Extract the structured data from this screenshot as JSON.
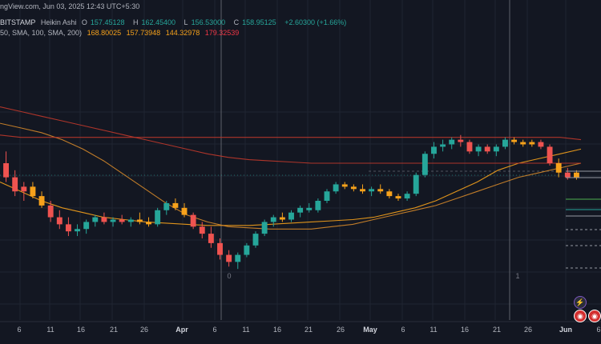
{
  "window": {
    "title_fragment": "ngView.com, Jun 03, 2025 12:43 UTC+5:30"
  },
  "header": {
    "symbol_exchange": "BITSTAMP",
    "chart_style": "Heikin Ashi",
    "open_label": "O",
    "open_value": "157.45128",
    "high_label": "H",
    "high_value": "162.45400",
    "low_label": "L",
    "low_value": "156.53000",
    "close_label": "C",
    "close_value": "158.95125",
    "change": "+2.60300 (+1.66%)"
  },
  "indicators": {
    "label": "50, SMA, 100, SMA, 200)",
    "values": [
      "168.80025",
      "157.73948",
      "144.32978",
      "179.32539"
    ]
  },
  "session_markers": [
    "0",
    "1"
  ],
  "x_axis": {
    "ticks": [
      {
        "label": "6",
        "is_month": false
      },
      {
        "label": "11",
        "is_month": false
      },
      {
        "label": "16",
        "is_month": false
      },
      {
        "label": "21",
        "is_month": false
      },
      {
        "label": "26",
        "is_month": false
      },
      {
        "label": "Apr",
        "is_month": true
      },
      {
        "label": "6",
        "is_month": false
      },
      {
        "label": "11",
        "is_month": false
      },
      {
        "label": "16",
        "is_month": false
      },
      {
        "label": "21",
        "is_month": false
      },
      {
        "label": "26",
        "is_month": false
      },
      {
        "label": "May",
        "is_month": true
      },
      {
        "label": "6",
        "is_month": false
      },
      {
        "label": "11",
        "is_month": false
      },
      {
        "label": "16",
        "is_month": false
      },
      {
        "label": "21",
        "is_month": false
      },
      {
        "label": "26",
        "is_month": false
      },
      {
        "label": "Jun",
        "is_month": true
      },
      {
        "label": "6",
        "is_month": false
      }
    ]
  },
  "colors": {
    "background": "#131722",
    "grid": "#1f2431",
    "up": "#26a69a",
    "down": "#ef5350",
    "neutral_orange": "#f7a21b",
    "sma_short": "#f7a21b",
    "sma_mid": "#d4872a",
    "sma_long": "#c0392b",
    "vertical_marker": "#5d606b"
  },
  "chart_data": {
    "type": "candlestick",
    "series_label": "Heikin Ashi",
    "candles": [
      {
        "o": 178,
        "h": 183,
        "l": 170,
        "c": 172,
        "dir": "down"
      },
      {
        "o": 172,
        "h": 175,
        "l": 164,
        "c": 166,
        "dir": "down"
      },
      {
        "o": 166,
        "h": 170,
        "l": 162,
        "c": 168,
        "dir": "down"
      },
      {
        "o": 168,
        "h": 170,
        "l": 163,
        "c": 164,
        "dir": "orange"
      },
      {
        "o": 164,
        "h": 166,
        "l": 159,
        "c": 160,
        "dir": "orange"
      },
      {
        "o": 160,
        "h": 162,
        "l": 153,
        "c": 155,
        "dir": "down"
      },
      {
        "o": 155,
        "h": 158,
        "l": 150,
        "c": 152,
        "dir": "down"
      },
      {
        "o": 152,
        "h": 155,
        "l": 147,
        "c": 149,
        "dir": "down"
      },
      {
        "o": 149,
        "h": 152,
        "l": 147,
        "c": 150,
        "dir": "up"
      },
      {
        "o": 150,
        "h": 154,
        "l": 148,
        "c": 153,
        "dir": "up"
      },
      {
        "o": 153,
        "h": 156,
        "l": 151,
        "c": 155,
        "dir": "up"
      },
      {
        "o": 155,
        "h": 157,
        "l": 152,
        "c": 153,
        "dir": "down"
      },
      {
        "o": 153,
        "h": 155,
        "l": 151,
        "c": 154,
        "dir": "up"
      },
      {
        "o": 154,
        "h": 156,
        "l": 152,
        "c": 153,
        "dir": "down"
      },
      {
        "o": 153,
        "h": 155,
        "l": 151,
        "c": 154,
        "dir": "up"
      },
      {
        "o": 154,
        "h": 157,
        "l": 152,
        "c": 153,
        "dir": "orange"
      },
      {
        "o": 153,
        "h": 155,
        "l": 151,
        "c": 152,
        "dir": "orange"
      },
      {
        "o": 152,
        "h": 159,
        "l": 151,
        "c": 158,
        "dir": "up"
      },
      {
        "o": 158,
        "h": 162,
        "l": 156,
        "c": 161,
        "dir": "up"
      },
      {
        "o": 161,
        "h": 163,
        "l": 158,
        "c": 159,
        "dir": "orange"
      },
      {
        "o": 159,
        "h": 161,
        "l": 155,
        "c": 156,
        "dir": "orange"
      },
      {
        "o": 156,
        "h": 157,
        "l": 150,
        "c": 151,
        "dir": "down"
      },
      {
        "o": 151,
        "h": 153,
        "l": 146,
        "c": 148,
        "dir": "down"
      },
      {
        "o": 148,
        "h": 151,
        "l": 142,
        "c": 144,
        "dir": "down"
      },
      {
        "o": 144,
        "h": 146,
        "l": 137,
        "c": 139,
        "dir": "down"
      },
      {
        "o": 139,
        "h": 141,
        "l": 134,
        "c": 136,
        "dir": "down"
      },
      {
        "o": 136,
        "h": 140,
        "l": 133,
        "c": 139,
        "dir": "up"
      },
      {
        "o": 139,
        "h": 144,
        "l": 138,
        "c": 143,
        "dir": "up"
      },
      {
        "o": 143,
        "h": 149,
        "l": 142,
        "c": 148,
        "dir": "up"
      },
      {
        "o": 148,
        "h": 154,
        "l": 147,
        "c": 153,
        "dir": "up"
      },
      {
        "o": 153,
        "h": 156,
        "l": 151,
        "c": 155,
        "dir": "up"
      },
      {
        "o": 155,
        "h": 157,
        "l": 153,
        "c": 154,
        "dir": "orange"
      },
      {
        "o": 154,
        "h": 158,
        "l": 153,
        "c": 157,
        "dir": "up"
      },
      {
        "o": 157,
        "h": 160,
        "l": 155,
        "c": 159,
        "dir": "up"
      },
      {
        "o": 159,
        "h": 161,
        "l": 157,
        "c": 158,
        "dir": "up"
      },
      {
        "o": 158,
        "h": 163,
        "l": 157,
        "c": 162,
        "dir": "up"
      },
      {
        "o": 162,
        "h": 167,
        "l": 161,
        "c": 166,
        "dir": "up"
      },
      {
        "o": 166,
        "h": 170,
        "l": 165,
        "c": 169,
        "dir": "up"
      },
      {
        "o": 169,
        "h": 170,
        "l": 167,
        "c": 168,
        "dir": "orange"
      },
      {
        "o": 168,
        "h": 169,
        "l": 166,
        "c": 167,
        "dir": "orange"
      },
      {
        "o": 167,
        "h": 169,
        "l": 165,
        "c": 166,
        "dir": "orange"
      },
      {
        "o": 166,
        "h": 168,
        "l": 164,
        "c": 167,
        "dir": "up"
      },
      {
        "o": 167,
        "h": 169,
        "l": 165,
        "c": 166,
        "dir": "orange"
      },
      {
        "o": 166,
        "h": 167,
        "l": 163,
        "c": 164,
        "dir": "orange"
      },
      {
        "o": 164,
        "h": 165,
        "l": 162,
        "c": 163,
        "dir": "orange"
      },
      {
        "o": 163,
        "h": 166,
        "l": 162,
        "c": 165,
        "dir": "up"
      },
      {
        "o": 165,
        "h": 174,
        "l": 164,
        "c": 173,
        "dir": "up"
      },
      {
        "o": 173,
        "h": 183,
        "l": 172,
        "c": 182,
        "dir": "up"
      },
      {
        "o": 182,
        "h": 187,
        "l": 180,
        "c": 185,
        "dir": "up"
      },
      {
        "o": 185,
        "h": 188,
        "l": 183,
        "c": 186,
        "dir": "up"
      },
      {
        "o": 186,
        "h": 189,
        "l": 184,
        "c": 188,
        "dir": "up"
      },
      {
        "o": 188,
        "h": 190,
        "l": 185,
        "c": 187,
        "dir": "down"
      },
      {
        "o": 187,
        "h": 188,
        "l": 182,
        "c": 183,
        "dir": "down"
      },
      {
        "o": 183,
        "h": 186,
        "l": 181,
        "c": 185,
        "dir": "up"
      },
      {
        "o": 185,
        "h": 186,
        "l": 182,
        "c": 183,
        "dir": "down"
      },
      {
        "o": 183,
        "h": 186,
        "l": 181,
        "c": 185,
        "dir": "up"
      },
      {
        "o": 185,
        "h": 189,
        "l": 184,
        "c": 188,
        "dir": "up"
      },
      {
        "o": 188,
        "h": 189,
        "l": 186,
        "c": 187,
        "dir": "orange"
      },
      {
        "o": 187,
        "h": 188,
        "l": 185,
        "c": 186,
        "dir": "orange"
      },
      {
        "o": 186,
        "h": 188,
        "l": 185,
        "c": 187,
        "dir": "orange"
      },
      {
        "o": 187,
        "h": 188,
        "l": 184,
        "c": 185,
        "dir": "down"
      },
      {
        "o": 185,
        "h": 186,
        "l": 177,
        "c": 178,
        "dir": "down"
      },
      {
        "o": 178,
        "h": 180,
        "l": 172,
        "c": 174,
        "dir": "orange"
      },
      {
        "o": 174,
        "h": 176,
        "l": 171,
        "c": 172,
        "dir": "down"
      },
      {
        "o": 172,
        "h": 175,
        "l": 171,
        "c": 174,
        "dir": "orange"
      }
    ],
    "sma_lines": [
      {
        "name": "SMA 50",
        "color_key": "sma_short",
        "values": [
          170,
          166,
          162,
          159,
          157,
          155,
          154,
          153,
          152.5,
          152,
          151.5,
          151.5,
          151.5,
          152,
          152.5,
          153,
          153.5,
          154,
          155,
          157,
          159,
          162,
          166,
          170,
          175,
          178,
          180,
          182,
          184
        ]
      },
      {
        "name": "SMA 100",
        "color_key": "sma_mid",
        "values": [
          195,
          193,
          191,
          188,
          184,
          179,
          173,
          167,
          161,
          156,
          153,
          151,
          150.5,
          150,
          150,
          150,
          151,
          152,
          154,
          156,
          158,
          160,
          163,
          166,
          169,
          172,
          174,
          176,
          178
        ]
      },
      {
        "name": "SMA 200",
        "color_key": "sma_long",
        "values": [
          202,
          200,
          198,
          196,
          194,
          192,
          190,
          188,
          186,
          184,
          182,
          180.5,
          179.5,
          179,
          178.5,
          178,
          178,
          178,
          178,
          178,
          178,
          178,
          178,
          178,
          178,
          178,
          178,
          178,
          178
        ]
      },
      {
        "name": "SMA 200 long",
        "color_key": "sma_long",
        "values": [
          190,
          189,
          189,
          189,
          189,
          189,
          189,
          189,
          189,
          189,
          189,
          189,
          189,
          189,
          189,
          189,
          189,
          189,
          189,
          189,
          189,
          189,
          189,
          189,
          189,
          189,
          189,
          189,
          188
        ]
      }
    ],
    "ylim": [
      130,
      210
    ]
  }
}
